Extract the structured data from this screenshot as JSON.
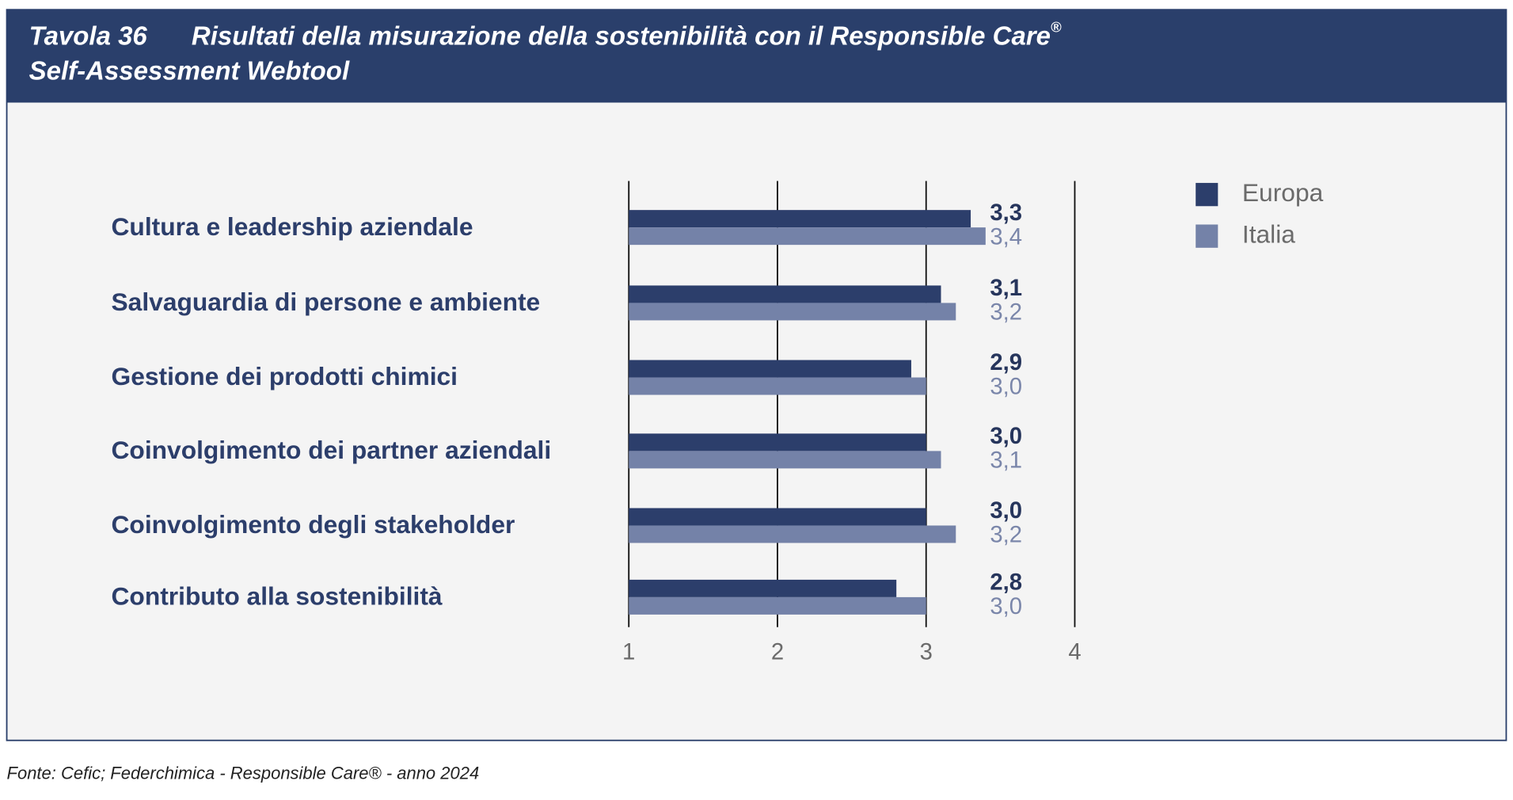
{
  "chart_data": {
    "type": "bar",
    "orientation": "horizontal",
    "title_label": "Tavola 36",
    "title": "Risultati della misurazione della sostenibilità con il Responsible Care",
    "title_mark": "®",
    "title_line2": "Self-Assessment Webtool",
    "source": "Fonte: Cefic; Federchimica - Responsible Care®  - anno 2024",
    "categories": [
      "Cultura e leadership aziendale",
      "Salvaguardia di persone e ambiente",
      "Gestione dei prodotti chimici",
      "Coinvolgimento dei partner aziendali",
      "Coinvolgimento degli stakeholder",
      "Contributo alla sostenibilità"
    ],
    "series": [
      {
        "name": "Europa",
        "color": "#2c3e6b",
        "label_color": "#26355c",
        "values": [
          3.3,
          3.1,
          2.9,
          3.0,
          3.0,
          2.8
        ],
        "value_labels": [
          "3,3",
          "3,1",
          "2,9",
          "3,0",
          "3,0",
          "2,8"
        ]
      },
      {
        "name": "Italia",
        "color": "#7482a8",
        "label_color": "#7a86aa",
        "values": [
          3.4,
          3.2,
          3.0,
          3.1,
          3.2,
          3.0
        ],
        "value_labels": [
          "3,4",
          "3,2",
          "3,0",
          "3,1",
          "3,2",
          "3,0"
        ]
      }
    ],
    "xlim": [
      1,
      4
    ],
    "xticks": [
      1,
      2,
      3,
      4
    ],
    "grid": true,
    "legend": "top-right"
  }
}
